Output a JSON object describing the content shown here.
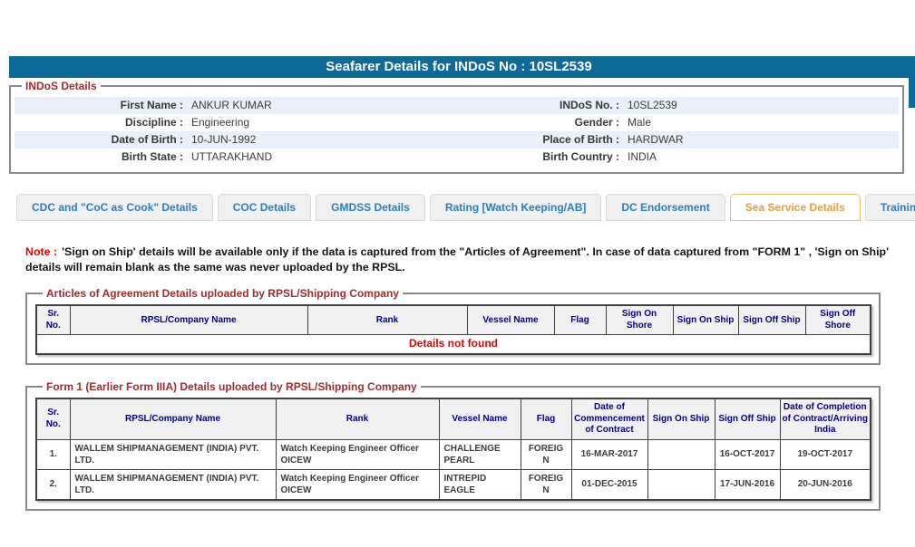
{
  "page": {
    "title": "Seafarer Details for INDoS No : 10SL2539"
  },
  "colors": {
    "titlebar_bg": "#0F6A9A",
    "tab_text": "#2B7FBE",
    "active_tab_text": "#EE9C3A",
    "active_tab_border": "#F2BE6E",
    "legend_maroon": "#A22B2B",
    "header_navy": "#00008B",
    "note_red": "#E60000",
    "row_stripe": "#E9F0FA"
  },
  "indos_details": {
    "legend": "INDoS Details",
    "rows": [
      {
        "l_label": "First Name :",
        "l_value": "ANKUR KUMAR",
        "r_label": "INDoS No. :",
        "r_value": "10SL2539"
      },
      {
        "l_label": "Discipline :",
        "l_value": "Engineering",
        "r_label": "Gender :",
        "r_value": "Male"
      },
      {
        "l_label": "Date of Birth :",
        "l_value": "10-JUN-1992",
        "r_label": "Place of Birth :",
        "r_value": "HARDWAR"
      },
      {
        "l_label": "Birth State :",
        "l_value": "UTTARAKHAND",
        "r_label": "Birth Country :",
        "r_value": "INDIA"
      }
    ]
  },
  "tabs": [
    {
      "label": "CDC and \"CoC as Cook\" Details",
      "active": false
    },
    {
      "label": "COC Details",
      "active": false
    },
    {
      "label": "GMDSS Details",
      "active": false
    },
    {
      "label": "Rating [Watch Keeping/AB]",
      "active": false
    },
    {
      "label": "DC Endorsement",
      "active": false
    },
    {
      "label": "Sea Service Details",
      "active": true
    },
    {
      "label": "Training Details",
      "active": false
    }
  ],
  "note": {
    "prefix": "Note :",
    "text": "'Sign on Ship' details will be available only if the data is captured from the \"Articles of Agreement\". In case of data captured from \"FORM 1\" , 'Sign on Ship' details will remain blank as the same was never uploaded by the RPSL."
  },
  "articles_table": {
    "legend": "Articles of Agreement Details uploaded by RPSL/Shipping Company",
    "headers": [
      "Sr. No.",
      "RPSL/Company Name",
      "Rank",
      "Vessel Name",
      "Flag",
      "Sign On Shore",
      "Sign On Ship",
      "Sign Off Ship",
      "Sign Off Shore"
    ],
    "empty_message": "Details not found"
  },
  "form1_table": {
    "legend": "Form 1 (Earlier Form IIIA) Details uploaded by RPSL/Shipping Company",
    "headers": [
      "Sr. No.",
      "RPSL/Company Name",
      "Rank",
      "Vessel Name",
      "Flag",
      "Date of Commencement of Contract",
      "Sign On Ship",
      "Sign Off Ship",
      "Date of Completion of Contract/Arriving India"
    ],
    "rows": [
      [
        "1.",
        "WALLEM SHIPMANAGEMENT (INDIA) PVT. LTD.",
        "Watch Keeping Engineer Officer OICEW",
        "CHALLENGE PEARL",
        "FOREIGN",
        "16-MAR-2017",
        "",
        "16-OCT-2017",
        "19-OCT-2017"
      ],
      [
        "2.",
        "WALLEM SHIPMANAGEMENT (INDIA) PVT. LTD.",
        "Watch Keeping Engineer Officer OICEW",
        "INTREPID EAGLE",
        "FOREIGN",
        "01-DEC-2015",
        "",
        "17-JUN-2016",
        "20-JUN-2016"
      ]
    ]
  }
}
